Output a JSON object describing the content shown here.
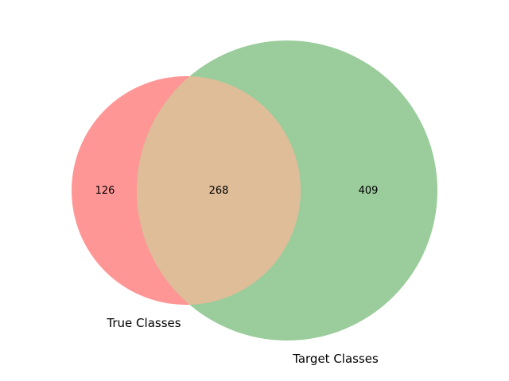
{
  "diagram": {
    "type": "venn2",
    "sets": [
      {
        "name": "True Classes",
        "color": "#ff9696"
      },
      {
        "name": "Target Classes",
        "color": "#9bcc9b"
      }
    ],
    "overlap_color": "#dfbd99",
    "regions": {
      "only_true": 126,
      "both": 268,
      "only_target": 409
    }
  }
}
